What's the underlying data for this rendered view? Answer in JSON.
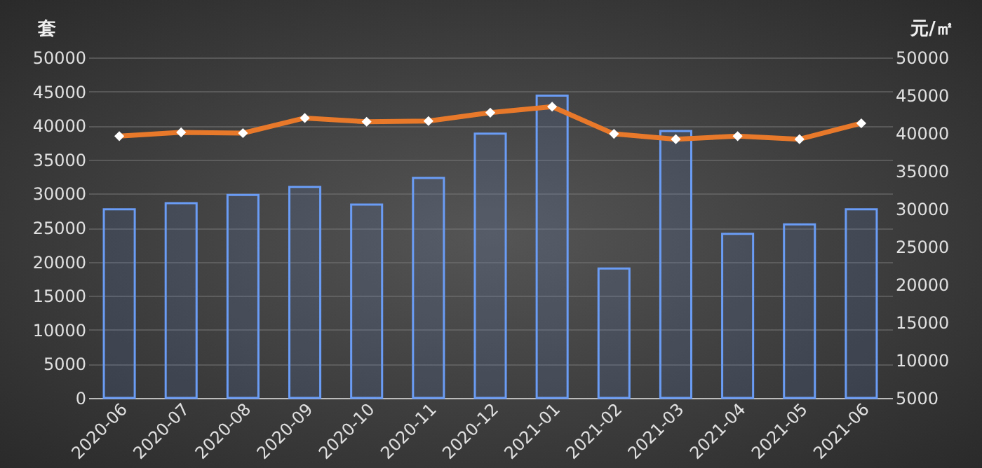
{
  "chart_data": {
    "type": "bar",
    "ylabel": "套",
    "y2label": "元/㎡",
    "categories": [
      "2020-06",
      "2020-07",
      "2020-08",
      "2020-09",
      "2020-10",
      "2020-11",
      "2020-12",
      "2021-01",
      "2021-02",
      "2021-03",
      "2021-04",
      "2021-05",
      "2021-06"
    ],
    "series": [
      {
        "color": "#6a9cf5",
        "values": [
          27700,
          28600,
          29800,
          31000,
          28400,
          32300,
          38800,
          44400,
          19000,
          39200,
          24100,
          25500,
          27700
        ]
      },
      {
        "type": "line",
        "axis": "y2",
        "color": "#e8792b",
        "marker": "diamond",
        "values": [
          39600,
          40100,
          40000,
          42000,
          41500,
          41600,
          42700,
          43500,
          39900,
          39200,
          39600,
          39200,
          41300
        ]
      }
    ],
    "ylim": [
      0,
      50000
    ],
    "yticks": [
      0,
      5000,
      10000,
      15000,
      20000,
      25000,
      30000,
      35000,
      40000,
      45000,
      50000
    ],
    "y2lim": [
      5000,
      50000
    ],
    "y2ticks": [
      5000,
      10000,
      15000,
      20000,
      25000,
      30000,
      35000,
      40000,
      45000,
      50000
    ],
    "grid": "y"
  }
}
